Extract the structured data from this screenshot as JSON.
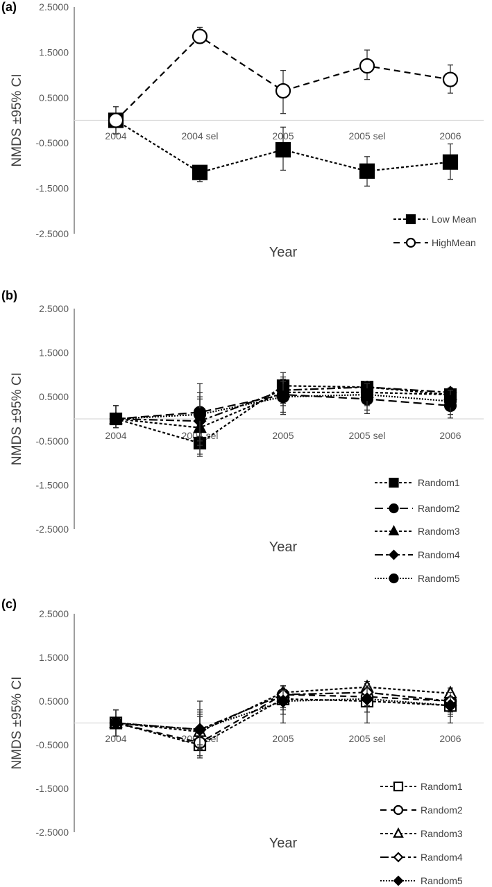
{
  "chart_data": [
    {
      "panel_label": "(a)",
      "type": "line",
      "xlabel": "Year",
      "ylabel": "NMDS  ±95% CI",
      "ylim": [
        -2.5,
        2.5
      ],
      "yticks": [
        "2.5000",
        "1.5000",
        "0.5000",
        "-0.5000",
        "-1.5000",
        "-2.5000"
      ],
      "categories": [
        "2004",
        "2004 sel",
        "2005",
        "2005 sel",
        "2006"
      ],
      "zero_line": true,
      "legend_position": "bottom-right",
      "series": [
        {
          "name": "Low Mean",
          "line_style": "dotted",
          "marker": "filled-square",
          "values": [
            0,
            -1.15,
            -0.65,
            -1.12,
            -0.92
          ],
          "ci_low": [
            -0.3,
            -1.35,
            -1.1,
            -1.45,
            -1.3
          ],
          "ci_high": [
            0.3,
            -1.0,
            -0.15,
            -0.8,
            -0.52
          ]
        },
        {
          "name": "HighMean",
          "line_style": "dashed",
          "marker": "open-circle",
          "values": [
            0,
            1.85,
            0.65,
            1.2,
            0.9
          ],
          "ci_low": [
            -0.3,
            1.7,
            0.15,
            0.9,
            0.6
          ],
          "ci_high": [
            0.3,
            2.05,
            1.1,
            1.55,
            1.22
          ]
        }
      ]
    },
    {
      "panel_label": "(b)",
      "type": "line",
      "xlabel": "Year",
      "ylabel": "NMDS  ±95% CI",
      "ylim": [
        -2.5,
        2.5
      ],
      "yticks": [
        "2.5000",
        "1.5000",
        "0.5000",
        "-0.5000",
        "-1.5000",
        "-2.5000"
      ],
      "categories": [
        "2004",
        "2004 sel",
        "2005",
        "2005 sel",
        "2006"
      ],
      "zero_line": true,
      "legend_position": "bottom-right",
      "series": [
        {
          "name": "Random1",
          "line_style": "dotted",
          "marker": "filled-square",
          "values": [
            0,
            -0.55,
            0.75,
            0.72,
            0.55
          ],
          "ci_low": [
            -0.2,
            -0.85,
            0.45,
            0.45,
            0.25
          ],
          "ci_high": [
            0.3,
            -0.25,
            1.05,
            0.8,
            0.7
          ]
        },
        {
          "name": "Random2",
          "line_style": "long-dash",
          "marker": "filled-circle",
          "values": [
            0,
            0.15,
            0.55,
            0.45,
            0.3
          ],
          "ci_low": [
            -0.2,
            -0.5,
            0.1,
            0.12,
            0.02
          ],
          "ci_high": [
            0.3,
            0.8,
            0.9,
            0.75,
            0.6
          ]
        },
        {
          "name": "Random3",
          "line_style": "dotted",
          "marker": "filled-triangle",
          "values": [
            0,
            -0.2,
            0.6,
            0.6,
            0.55
          ],
          "ci_low": [
            -0.2,
            -0.8,
            0.3,
            0.3,
            0.3
          ],
          "ci_high": [
            0.3,
            0.45,
            0.9,
            0.85,
            0.7
          ]
        },
        {
          "name": "Random4",
          "line_style": "dash-dot",
          "marker": "filled-diamond",
          "values": [
            0,
            -0.05,
            0.65,
            0.72,
            0.6
          ],
          "ci_low": [
            -0.2,
            -0.6,
            0.35,
            0.45,
            0.35
          ],
          "ci_high": [
            0.3,
            0.5,
            0.95,
            0.85,
            0.7
          ]
        },
        {
          "name": "Random5",
          "line_style": "fine-dotted",
          "marker": "filled-circle",
          "values": [
            0,
            0.1,
            0.5,
            0.55,
            0.4
          ],
          "ci_low": [
            -0.2,
            -0.4,
            0.15,
            0.2,
            0.1
          ],
          "ci_high": [
            0.3,
            0.6,
            0.85,
            0.8,
            0.65
          ]
        }
      ]
    },
    {
      "panel_label": "(c)",
      "type": "line",
      "xlabel": "Year",
      "ylabel": "NMDS  ±95% CI",
      "ylim": [
        -2.5,
        2.5
      ],
      "yticks": [
        "2.5000",
        "1.5000",
        "0.5000",
        "-0.5000",
        "-1.5000",
        "-2.5000"
      ],
      "categories": [
        "2004",
        "2004 sel",
        "2005",
        "2005 sel",
        "2006"
      ],
      "zero_line": true,
      "legend_position": "bottom-right",
      "series": [
        {
          "name": "Random1",
          "line_style": "dotted",
          "marker": "open-square",
          "values": [
            0,
            -0.5,
            0.55,
            0.5,
            0.4
          ],
          "ci_low": [
            -0.3,
            -0.8,
            0.0,
            0.0,
            0.0
          ],
          "ci_high": [
            0.3,
            0.5,
            0.85,
            0.9,
            0.75
          ]
        },
        {
          "name": "Random2",
          "line_style": "dashed",
          "marker": "open-circle",
          "values": [
            0,
            -0.45,
            0.65,
            0.6,
            0.5
          ],
          "ci_low": [
            -0.3,
            -0.75,
            0.3,
            0.25,
            0.2
          ],
          "ci_high": [
            0.3,
            0.3,
            0.85,
            0.85,
            0.7
          ]
        },
        {
          "name": "Random3",
          "line_style": "dotted",
          "marker": "open-triangle",
          "values": [
            0,
            -0.2,
            0.7,
            0.82,
            0.68
          ],
          "ci_low": [
            -0.3,
            -0.6,
            0.45,
            0.55,
            0.45
          ],
          "ci_high": [
            0.3,
            0.25,
            0.85,
            0.95,
            0.8
          ]
        },
        {
          "name": "Random4",
          "line_style": "dash-dot",
          "marker": "open-diamond",
          "values": [
            0,
            -0.15,
            0.65,
            0.7,
            0.5
          ],
          "ci_low": [
            -0.3,
            -0.55,
            0.35,
            0.4,
            0.25
          ],
          "ci_high": [
            0.3,
            0.2,
            0.85,
            0.85,
            0.7
          ]
        },
        {
          "name": "Random5",
          "line_style": "fine-dotted",
          "marker": "filled-diamond",
          "values": [
            0,
            -0.15,
            0.5,
            0.55,
            0.4
          ],
          "ci_low": [
            -0.3,
            -0.5,
            0.2,
            0.25,
            0.15
          ],
          "ci_high": [
            0.3,
            0.15,
            0.75,
            0.8,
            0.6
          ]
        }
      ]
    }
  ]
}
